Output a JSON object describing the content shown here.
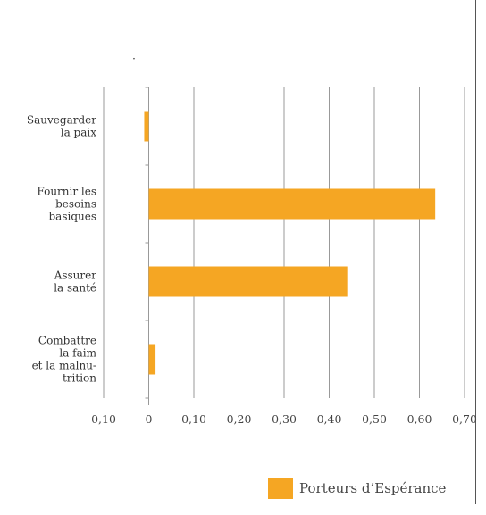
{
  "chart_data": {
    "type": "bar",
    "orientation": "horizontal",
    "categories": [
      [
        "Sauvegarder",
        "la paix"
      ],
      [
        "Fournir les",
        "besoins",
        "basiques"
      ],
      [
        "Assurer",
        "la santé"
      ],
      [
        "Combattre",
        "la faim",
        "et la malnu-",
        "trition"
      ]
    ],
    "series": [
      {
        "name": "Porteurs d’Espérance",
        "values": [
          -0.01,
          0.635,
          0.44,
          0.015
        ],
        "color": "#F5A623"
      }
    ],
    "xlim": [
      -0.1,
      0.7
    ],
    "x_ticks": [
      -0.1,
      0,
      0.1,
      0.2,
      0.3,
      0.4,
      0.5,
      0.6,
      0.7
    ],
    "x_tick_labels": [
      "0,10",
      "0",
      "0,10",
      "0,20",
      "0,30",
      "0,40",
      "0,50",
      "0,60",
      "0,70"
    ],
    "grid": "vertical",
    "legend_position": "bottom-right",
    "gridline_color": "#999999"
  }
}
